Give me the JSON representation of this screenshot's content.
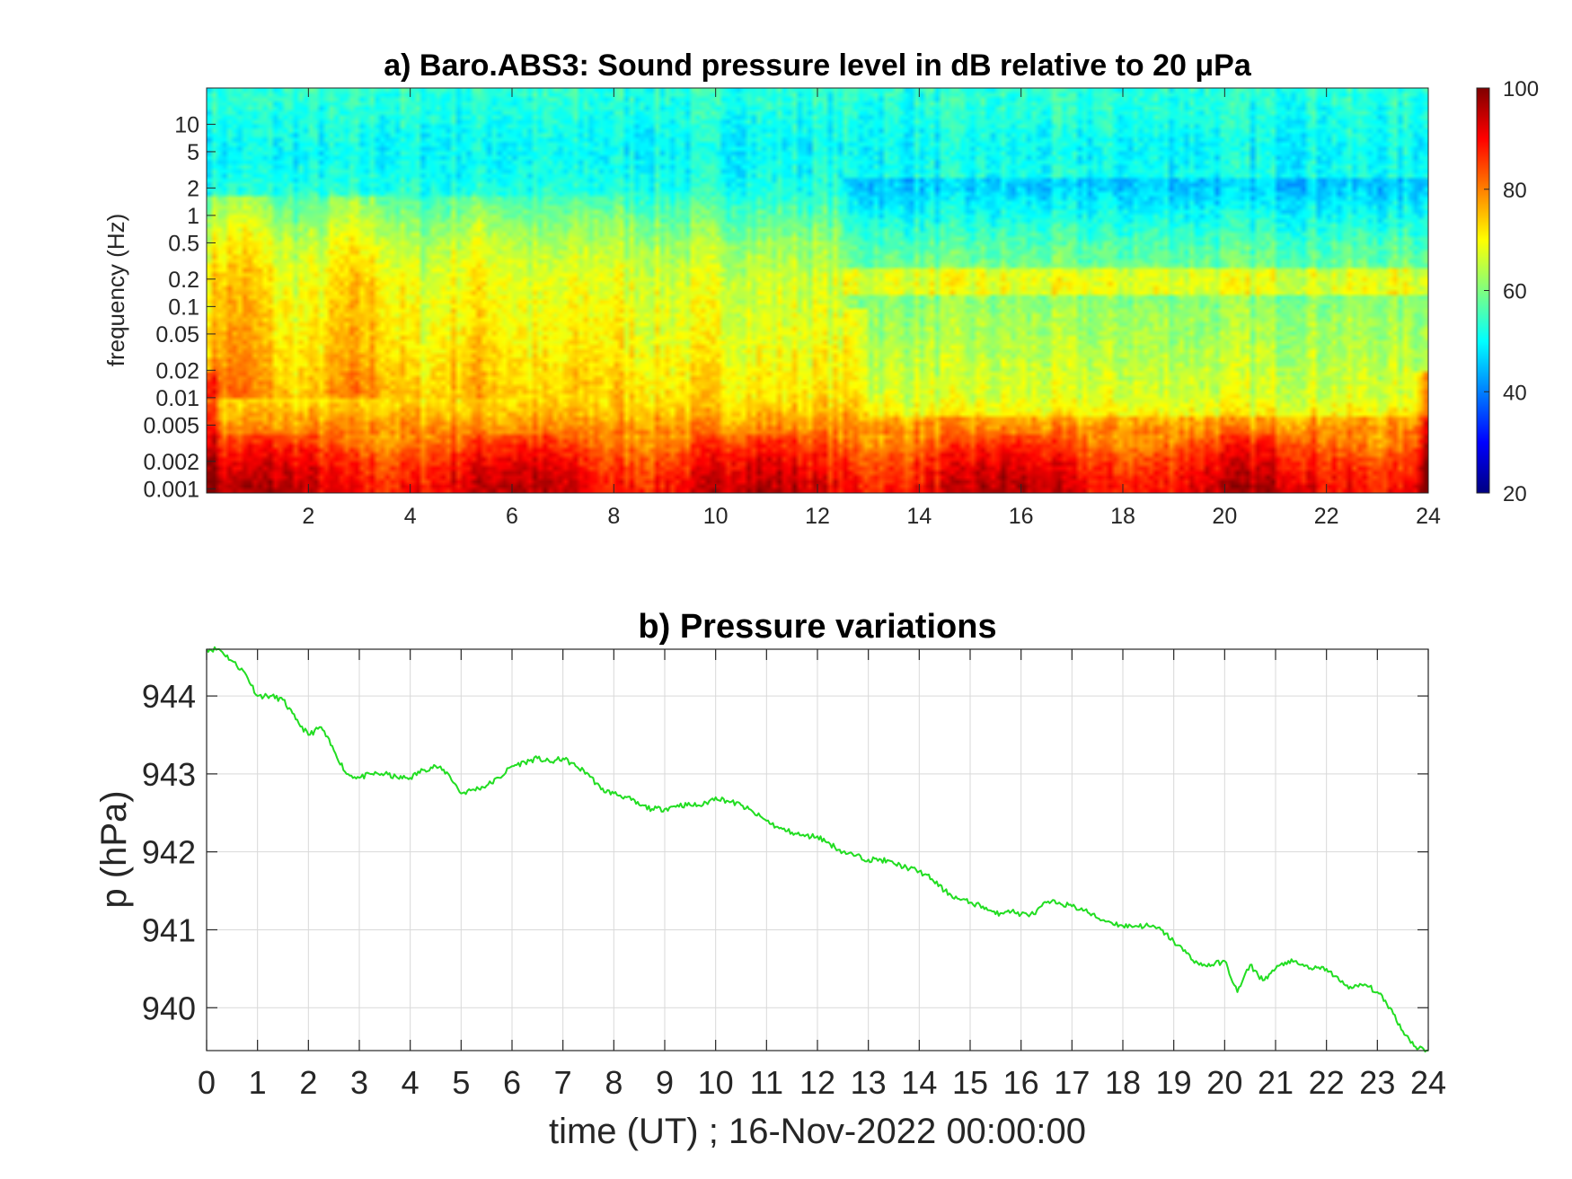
{
  "chart_data": [
    {
      "type": "heatmap",
      "title": "a) Baro.ABS3: Sound pressure level in dB relative to 20 μPa",
      "xlabel": "",
      "ylabel": "frequency (Hz)",
      "x_ticks": [
        2,
        4,
        6,
        8,
        10,
        12,
        14,
        16,
        18,
        20,
        22,
        24
      ],
      "xlim": [
        0,
        24
      ],
      "y_scale": "log",
      "ylim": [
        0.0009,
        25
      ],
      "y_ticks": [
        0.001,
        0.002,
        0.005,
        0.01,
        0.02,
        0.05,
        0.1,
        0.2,
        0.5,
        1,
        2,
        5,
        10
      ],
      "y_tick_labels": [
        "0.001",
        "0.002",
        "0.005",
        "0.01",
        "0.02",
        "0.05",
        "0.1",
        "0.2",
        "0.5",
        "1",
        "2",
        "5",
        "10"
      ],
      "colormap": "jet",
      "colorbar": {
        "range": [
          20,
          100
        ],
        "ticks": [
          20,
          40,
          60,
          80,
          100
        ],
        "position": "right"
      },
      "level_profile_db": [
        {
          "frequency": 0.001,
          "level": 92
        },
        {
          "frequency": 0.002,
          "level": 88
        },
        {
          "frequency": 0.005,
          "level": 78
        },
        {
          "frequency": 0.01,
          "level": 72
        },
        {
          "frequency": 0.05,
          "level": 68
        },
        {
          "frequency": 0.2,
          "level": 66
        },
        {
          "frequency": 0.5,
          "level": 62
        },
        {
          "frequency": 2,
          "level": 52
        },
        {
          "frequency": 5,
          "level": 50
        },
        {
          "frequency": 20,
          "level": 53
        }
      ]
    },
    {
      "type": "line",
      "title": "b) Pressure variations",
      "xlabel": "time (UT) ; 16-Nov-2022 00:00:00",
      "ylabel": "p (hPa)",
      "xlim": [
        0,
        24
      ],
      "ylim": [
        939.45,
        944.6
      ],
      "x_ticks": [
        0,
        1,
        2,
        3,
        4,
        5,
        6,
        7,
        8,
        9,
        10,
        11,
        12,
        13,
        14,
        15,
        16,
        17,
        18,
        19,
        20,
        21,
        22,
        23,
        24
      ],
      "y_ticks": [
        940,
        941,
        942,
        943,
        944
      ],
      "grid": true,
      "line_color": "#22dd22",
      "series": [
        {
          "x": [
            0,
            0.25,
            0.5,
            0.75,
            1.0,
            1.25,
            1.5,
            1.75,
            2.0,
            2.25,
            2.5,
            2.75,
            3.0,
            3.25,
            3.5,
            3.75,
            4.0,
            4.25,
            4.5,
            4.75,
            5.0,
            5.25,
            5.5,
            5.75,
            6.0,
            6.25,
            6.5,
            6.75,
            7.0,
            7.25,
            7.5,
            7.75,
            8.0,
            8.25,
            8.5,
            8.75,
            9.0,
            9.25,
            9.5,
            9.75,
            10.0,
            10.25,
            10.5,
            10.75,
            11.0,
            11.25,
            11.5,
            11.75,
            12.0,
            12.25,
            12.5,
            12.75,
            13.0,
            13.25,
            13.5,
            13.75,
            14.0,
            14.25,
            14.5,
            14.75,
            15.0,
            15.25,
            15.5,
            15.75,
            16.0,
            16.25,
            16.5,
            16.75,
            17.0,
            17.25,
            17.5,
            17.75,
            18.0,
            18.25,
            18.5,
            18.75,
            19.0,
            19.25,
            19.5,
            19.75,
            20.0,
            20.25,
            20.5,
            20.75,
            21.0,
            21.25,
            21.5,
            21.75,
            22.0,
            22.25,
            22.5,
            22.75,
            23.0,
            23.25,
            23.5,
            23.75,
            24.0
          ],
          "y": [
            944.6,
            944.6,
            944.45,
            944.3,
            944.0,
            944.0,
            943.95,
            943.7,
            943.5,
            943.6,
            943.3,
            943.0,
            942.95,
            943.0,
            943.0,
            942.95,
            942.95,
            943.05,
            943.1,
            943.0,
            942.75,
            942.8,
            942.85,
            942.95,
            943.1,
            943.15,
            943.2,
            943.15,
            943.2,
            943.1,
            943.0,
            942.8,
            942.75,
            942.7,
            942.6,
            942.55,
            942.55,
            942.6,
            942.6,
            942.6,
            942.7,
            942.65,
            942.6,
            942.5,
            942.4,
            942.3,
            942.25,
            942.2,
            942.2,
            942.1,
            942.0,
            941.95,
            941.9,
            941.9,
            941.85,
            941.8,
            941.75,
            941.65,
            941.5,
            941.4,
            941.35,
            941.3,
            941.2,
            941.25,
            941.2,
            941.2,
            941.35,
            941.35,
            941.3,
            941.25,
            941.15,
            941.1,
            941.05,
            941.05,
            941.05,
            941.0,
            940.85,
            940.7,
            940.55,
            940.55,
            940.6,
            940.2,
            940.55,
            940.35,
            940.5,
            940.6,
            940.55,
            940.5,
            940.5,
            940.35,
            940.25,
            940.3,
            940.2,
            940.0,
            939.7,
            939.5,
            939.45
          ]
        }
      ]
    }
  ]
}
